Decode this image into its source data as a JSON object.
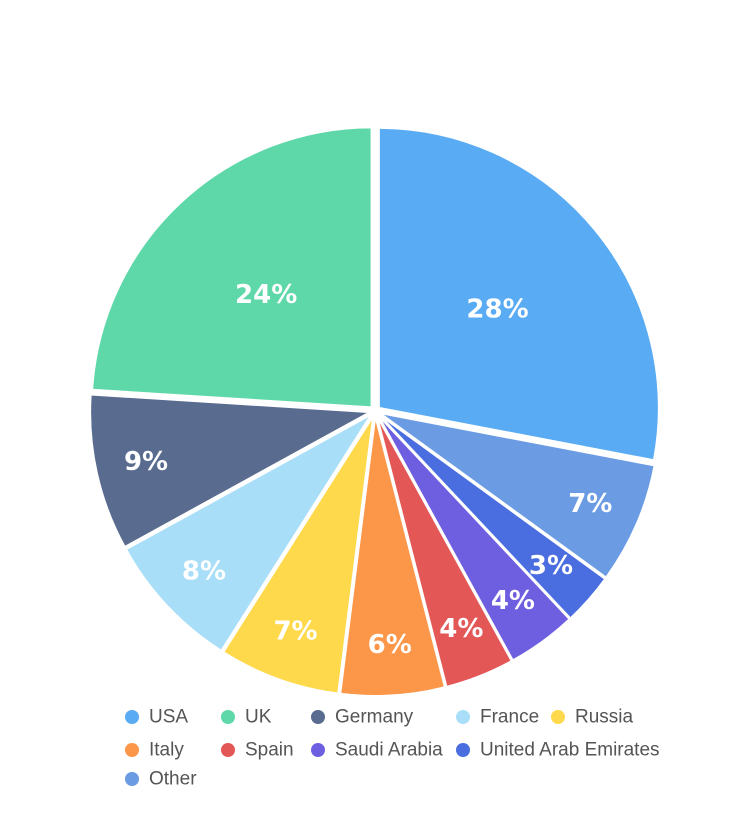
{
  "chart_data": {
    "type": "pie",
    "title": "",
    "categories": [
      "USA",
      "UK",
      "Germany",
      "France",
      "Russia",
      "Italy",
      "Spain",
      "Saudi Arabia",
      "United Arab Emirates",
      "Other"
    ],
    "slices": [
      {
        "name": "USA",
        "value": 28,
        "label": "28%",
        "color": "#59ABF3"
      },
      {
        "name": "Other",
        "value": 7,
        "label": "7%",
        "color": "#6A9BE3"
      },
      {
        "name": "United Arab Emirates",
        "value": 3,
        "label": "3%",
        "color": "#4A6EE0"
      },
      {
        "name": "Saudi Arabia",
        "value": 4,
        "label": "4%",
        "color": "#6E5FE0"
      },
      {
        "name": "Spain",
        "value": 4,
        "label": "4%",
        "color": "#E45757"
      },
      {
        "name": "Italy",
        "value": 6,
        "label": "6%",
        "color": "#FC974A"
      },
      {
        "name": "Russia",
        "value": 7,
        "label": "7%",
        "color": "#FDD94B"
      },
      {
        "name": "France",
        "value": 8,
        "label": "8%",
        "color": "#A9DEF8"
      },
      {
        "name": "Germany",
        "value": 9,
        "label": "9%",
        "color": "#596B8E"
      },
      {
        "name": "UK",
        "value": 24,
        "label": "24%",
        "color": "#5ED8A8"
      }
    ],
    "legend": {
      "placement": "bottom",
      "items": [
        {
          "name": "USA",
          "color": "#59ABF3"
        },
        {
          "name": "UK",
          "color": "#5ED8A8"
        },
        {
          "name": "Germany",
          "color": "#596B8E"
        },
        {
          "name": "France",
          "color": "#A9DEF8"
        },
        {
          "name": "Russia",
          "color": "#FDD94B"
        },
        {
          "name": "Italy",
          "color": "#FC974A"
        },
        {
          "name": "Spain",
          "color": "#E45757"
        },
        {
          "name": "Saudi Arabia",
          "color": "#6E5FE0"
        },
        {
          "name": "United Arab Emirates",
          "color": "#4A6EE0"
        },
        {
          "name": "Other",
          "color": "#6A9BE3"
        }
      ]
    }
  }
}
